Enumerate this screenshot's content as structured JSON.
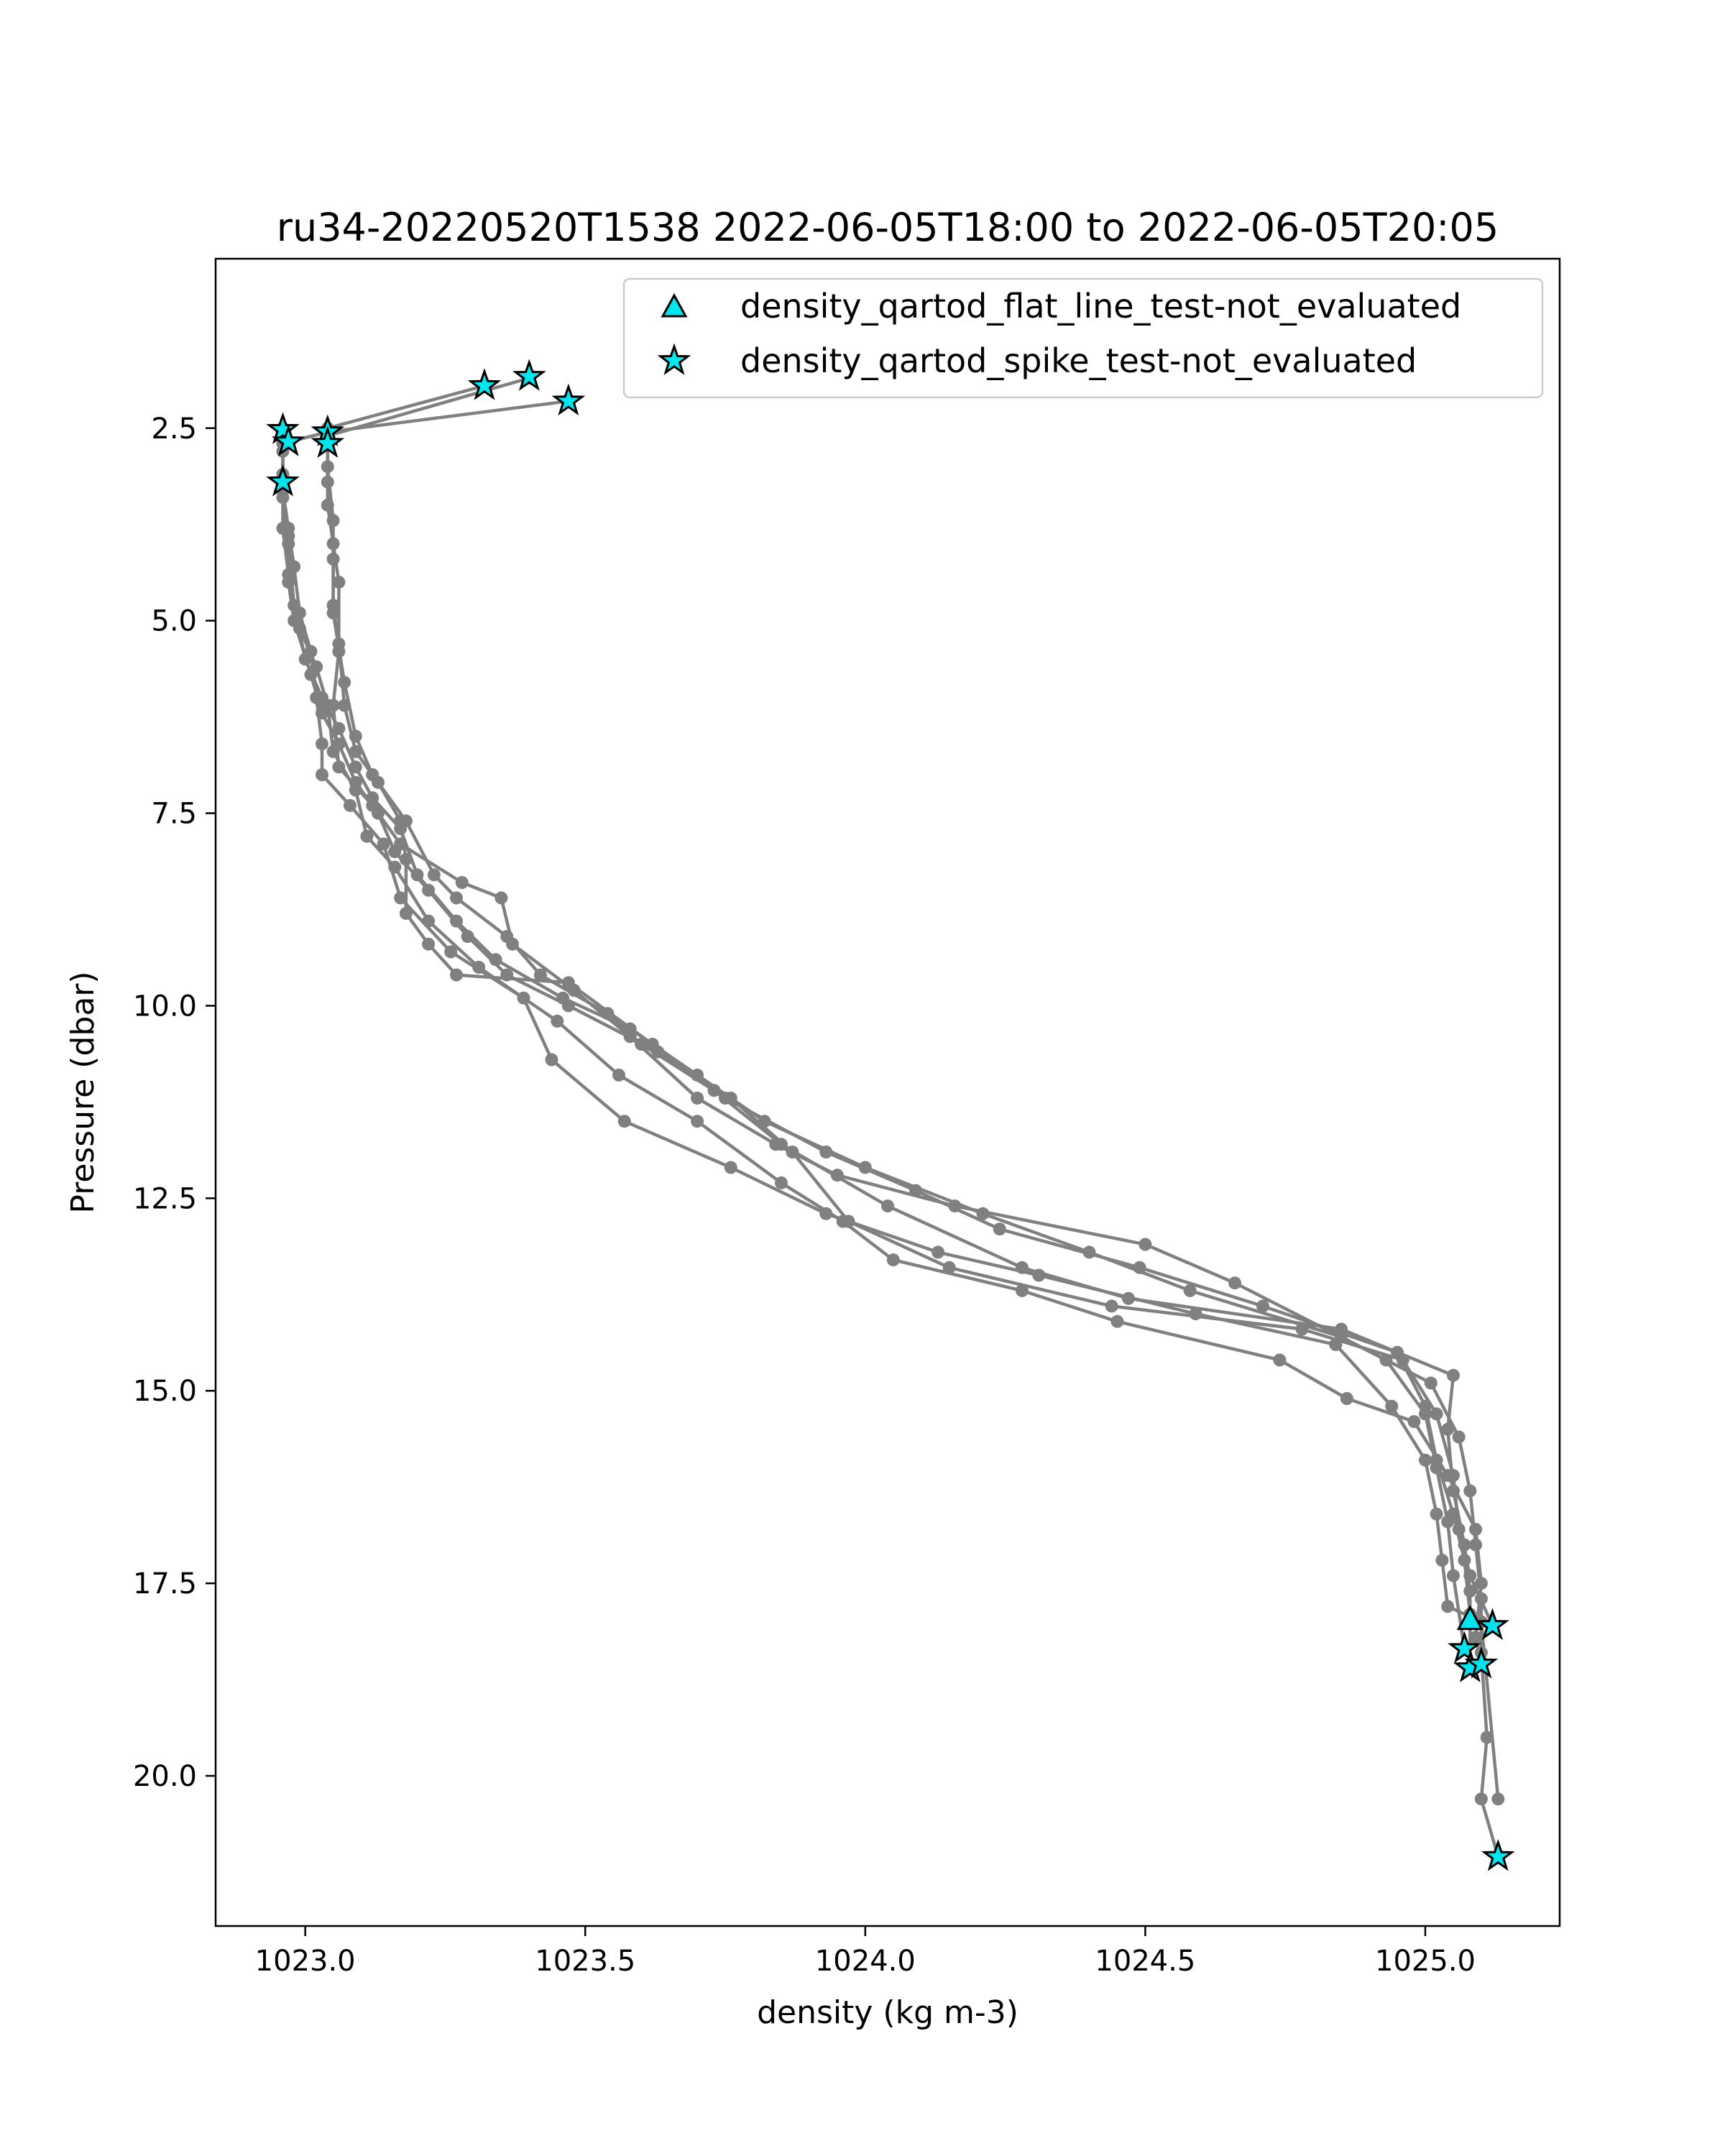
{
  "chart_data": {
    "type": "line",
    "title": "ru34-20220520T1538 2022-06-05T18:00 to 2022-06-05T20:05",
    "xlabel": "density (kg m-3)",
    "ylabel": "Pressure (dbar)",
    "xlim": [
      1022.84,
      1025.24
    ],
    "ylim": [
      21.95,
      0.3
    ],
    "y_inverted": true,
    "grid": false,
    "legend_position": "upper right",
    "xticks": [
      {
        "value": 1023.0,
        "label": "1023.0"
      },
      {
        "value": 1023.5,
        "label": "1023.5"
      },
      {
        "value": 1024.0,
        "label": "1024.0"
      },
      {
        "value": 1024.5,
        "label": "1024.5"
      },
      {
        "value": 1025.0,
        "label": "1025.0"
      }
    ],
    "yticks": [
      {
        "value": 2.5,
        "label": "2.5"
      },
      {
        "value": 5.0,
        "label": "5.0"
      },
      {
        "value": 7.5,
        "label": "7.5"
      },
      {
        "value": 10.0,
        "label": "10.0"
      },
      {
        "value": 12.5,
        "label": "12.5"
      },
      {
        "value": 15.0,
        "label": "15.0"
      },
      {
        "value": 17.5,
        "label": "17.5"
      },
      {
        "value": 20.0,
        "label": "20.0"
      }
    ],
    "colors": {
      "profile_line": "#808080",
      "marker_face": "#00e5ee",
      "marker_edge": "#000000"
    },
    "series": [
      {
        "points": [
          [
            1023.32,
            1.95
          ],
          [
            1023.04,
            2.5
          ],
          [
            1023.04,
            3.0
          ],
          [
            1023.05,
            3.7
          ],
          [
            1023.05,
            4.2
          ],
          [
            1023.05,
            4.8
          ],
          [
            1023.06,
            5.3
          ],
          [
            1023.07,
            6.1
          ],
          [
            1023.09,
            6.7
          ],
          [
            1023.13,
            7.1
          ],
          [
            1023.17,
            7.6
          ],
          [
            1023.18,
            8.1
          ],
          [
            1023.18,
            8.8
          ],
          [
            1023.22,
            9.2
          ],
          [
            1023.27,
            9.6
          ],
          [
            1023.47,
            9.7
          ],
          [
            1023.62,
            10.5
          ],
          [
            1023.76,
            11.2
          ],
          [
            1023.87,
            11.9
          ],
          [
            1023.97,
            12.8
          ],
          [
            1024.15,
            13.4
          ],
          [
            1024.44,
            13.9
          ],
          [
            1024.78,
            14.2
          ],
          [
            1024.96,
            14.6
          ],
          [
            1025.02,
            15.3
          ],
          [
            1025.05,
            16.1
          ],
          [
            1025.06,
            16.8
          ],
          [
            1025.08,
            17.4
          ],
          [
            1025.12,
            18.05
          ]
        ]
      },
      {
        "points": [
          [
            1023.4,
            1.85
          ],
          [
            1023.04,
            2.6
          ],
          [
            1023.04,
            3.2
          ],
          [
            1023.05,
            4.0
          ],
          [
            1023.05,
            4.9
          ],
          [
            1023.07,
            5.8
          ],
          [
            1023.09,
            6.5
          ],
          [
            1023.12,
            7.0
          ],
          [
            1023.18,
            7.6
          ],
          [
            1023.23,
            8.3
          ],
          [
            1023.27,
            8.6
          ],
          [
            1023.36,
            9.1
          ],
          [
            1023.42,
            9.6
          ],
          [
            1023.54,
            10.1
          ],
          [
            1023.6,
            10.5
          ],
          [
            1023.73,
            11.1
          ],
          [
            1023.85,
            11.8
          ],
          [
            1024.04,
            12.6
          ],
          [
            1024.28,
            13.4
          ],
          [
            1024.47,
            13.8
          ],
          [
            1024.85,
            14.2
          ],
          [
            1025.05,
            14.8
          ],
          [
            1025.04,
            15.5
          ],
          [
            1025.05,
            16.3
          ],
          [
            1025.07,
            17.0
          ],
          [
            1025.08,
            17.6
          ],
          [
            1025.08,
            17.98
          ]
        ]
      },
      {
        "points": [
          [
            1023.47,
            2.15
          ],
          [
            1023.04,
            2.55
          ],
          [
            1023.04,
            3.5
          ],
          [
            1023.06,
            4.5
          ],
          [
            1023.06,
            5.4
          ],
          [
            1023.05,
            6.1
          ],
          [
            1023.06,
            6.9
          ],
          [
            1023.12,
            7.4
          ],
          [
            1023.17,
            7.9
          ],
          [
            1023.28,
            8.4
          ],
          [
            1023.35,
            8.6
          ],
          [
            1023.37,
            9.2
          ],
          [
            1023.48,
            9.8
          ],
          [
            1023.58,
            10.4
          ],
          [
            1023.7,
            11.2
          ],
          [
            1023.84,
            11.8
          ],
          [
            1023.95,
            12.2
          ],
          [
            1024.16,
            12.6
          ],
          [
            1024.5,
            13.1
          ],
          [
            1024.66,
            13.6
          ],
          [
            1024.93,
            14.6
          ],
          [
            1025.0,
            15.3
          ],
          [
            1025.02,
            16.0
          ],
          [
            1025.04,
            16.7
          ],
          [
            1025.05,
            17.4
          ],
          [
            1025.07,
            18.35
          ]
        ]
      },
      {
        "points": [
          [
            1023.04,
            2.55
          ],
          [
            1022.96,
            2.7
          ],
          [
            1022.96,
            3.3
          ],
          [
            1022.97,
            3.9
          ],
          [
            1022.97,
            4.5
          ],
          [
            1022.98,
            5.0
          ],
          [
            1023.01,
            5.7
          ],
          [
            1023.03,
            6.2
          ],
          [
            1023.06,
            6.6
          ],
          [
            1023.09,
            7.1
          ],
          [
            1023.13,
            7.5
          ],
          [
            1023.16,
            8.0
          ],
          [
            1023.22,
            8.5
          ],
          [
            1023.29,
            9.1
          ],
          [
            1023.36,
            9.6
          ],
          [
            1023.47,
            10.0
          ],
          [
            1023.63,
            10.6
          ],
          [
            1023.75,
            11.2
          ],
          [
            1023.93,
            11.9
          ],
          [
            1024.09,
            12.4
          ],
          [
            1024.24,
            12.9
          ],
          [
            1024.49,
            13.4
          ],
          [
            1024.71,
            13.9
          ],
          [
            1024.95,
            14.5
          ],
          [
            1025.0,
            15.2
          ],
          [
            1025.02,
            15.9
          ],
          [
            1025.05,
            16.6
          ],
          [
            1025.07,
            17.2
          ],
          [
            1025.08,
            17.9
          ],
          [
            1025.08,
            18.6
          ]
        ]
      },
      {
        "points": [
          [
            1022.96,
            2.5
          ],
          [
            1022.96,
            3.1
          ],
          [
            1022.96,
            3.8
          ],
          [
            1022.97,
            4.4
          ],
          [
            1022.99,
            5.1
          ],
          [
            1023.02,
            5.6
          ],
          [
            1023.04,
            6.1
          ],
          [
            1023.05,
            6.7
          ],
          [
            1023.09,
            7.2
          ],
          [
            1023.11,
            7.8
          ],
          [
            1023.16,
            8.2
          ],
          [
            1023.22,
            8.9
          ],
          [
            1023.31,
            9.5
          ],
          [
            1023.45,
            10.2
          ],
          [
            1023.56,
            10.9
          ],
          [
            1023.7,
            11.5
          ],
          [
            1023.85,
            12.3
          ],
          [
            1023.96,
            12.8
          ],
          [
            1024.05,
            13.3
          ],
          [
            1024.28,
            13.7
          ],
          [
            1024.45,
            14.1
          ],
          [
            1024.74,
            14.6
          ],
          [
            1024.86,
            15.1
          ],
          [
            1024.98,
            15.4
          ],
          [
            1025.04,
            16.1
          ],
          [
            1025.09,
            16.8
          ],
          [
            1025.1,
            17.5
          ],
          [
            1025.09,
            18.2
          ],
          [
            1025.1,
            18.55
          ]
        ]
      },
      {
        "points": [
          [
            1022.96,
            2.8
          ],
          [
            1022.96,
            3.4
          ],
          [
            1022.97,
            4.0
          ],
          [
            1022.98,
            4.8
          ],
          [
            1023.0,
            5.5
          ],
          [
            1023.03,
            6.0
          ],
          [
            1023.06,
            6.4
          ],
          [
            1023.09,
            6.9
          ],
          [
            1023.12,
            7.3
          ],
          [
            1023.17,
            7.7
          ],
          [
            1023.2,
            8.3
          ],
          [
            1023.27,
            8.9
          ],
          [
            1023.34,
            9.4
          ],
          [
            1023.46,
            9.9
          ],
          [
            1023.58,
            10.3
          ],
          [
            1023.7,
            10.9
          ],
          [
            1023.82,
            11.5
          ],
          [
            1024.0,
            12.1
          ],
          [
            1024.21,
            12.7
          ],
          [
            1024.4,
            13.2
          ],
          [
            1024.58,
            13.7
          ],
          [
            1024.85,
            14.3
          ],
          [
            1025.01,
            14.9
          ],
          [
            1025.06,
            15.6
          ],
          [
            1025.08,
            16.3
          ],
          [
            1025.09,
            17.0
          ],
          [
            1025.1,
            17.7
          ],
          [
            1025.1,
            18.4
          ],
          [
            1025.11,
            19.5
          ],
          [
            1025.1,
            20.3
          ],
          [
            1025.13,
            21.05
          ]
        ]
      },
      {
        "points": [
          [
            1022.96,
            3.3
          ],
          [
            1022.97,
            3.8
          ],
          [
            1022.98,
            4.3
          ],
          [
            1022.99,
            4.9
          ],
          [
            1023.01,
            5.4
          ],
          [
            1023.02,
            6.0
          ],
          [
            1023.03,
            6.6
          ],
          [
            1023.03,
            7.0
          ],
          [
            1023.08,
            7.4
          ],
          [
            1023.14,
            7.9
          ],
          [
            1023.17,
            8.6
          ],
          [
            1023.26,
            9.3
          ],
          [
            1023.39,
            9.9
          ],
          [
            1023.44,
            10.7
          ],
          [
            1023.57,
            11.5
          ],
          [
            1023.76,
            12.1
          ],
          [
            1023.93,
            12.7
          ],
          [
            1024.13,
            13.2
          ],
          [
            1024.31,
            13.5
          ],
          [
            1024.59,
            14.0
          ],
          [
            1024.84,
            14.4
          ],
          [
            1024.94,
            15.2
          ],
          [
            1025.0,
            15.9
          ],
          [
            1025.02,
            16.6
          ],
          [
            1025.03,
            17.2
          ],
          [
            1025.04,
            17.8
          ],
          [
            1025.1,
            18.0
          ],
          [
            1025.13,
            20.3
          ]
        ]
      }
    ],
    "flags": [
      {
        "name": "density_qartod_flat_line_test-not_evaluated",
        "marker": "triangle",
        "points": [
          [
            1025.08,
            17.98
          ]
        ]
      },
      {
        "name": "density_qartod_spike_test-not_evaluated",
        "marker": "star",
        "points": [
          [
            1022.96,
            2.52
          ],
          [
            1022.97,
            2.68
          ],
          [
            1022.96,
            3.2
          ],
          [
            1023.04,
            2.55
          ],
          [
            1023.04,
            2.7
          ],
          [
            1023.32,
            1.95
          ],
          [
            1023.4,
            1.83
          ],
          [
            1023.47,
            2.15
          ],
          [
            1025.12,
            18.05
          ],
          [
            1025.07,
            18.35
          ],
          [
            1025.08,
            18.6
          ],
          [
            1025.1,
            18.55
          ],
          [
            1025.13,
            21.05
          ]
        ]
      }
    ]
  }
}
